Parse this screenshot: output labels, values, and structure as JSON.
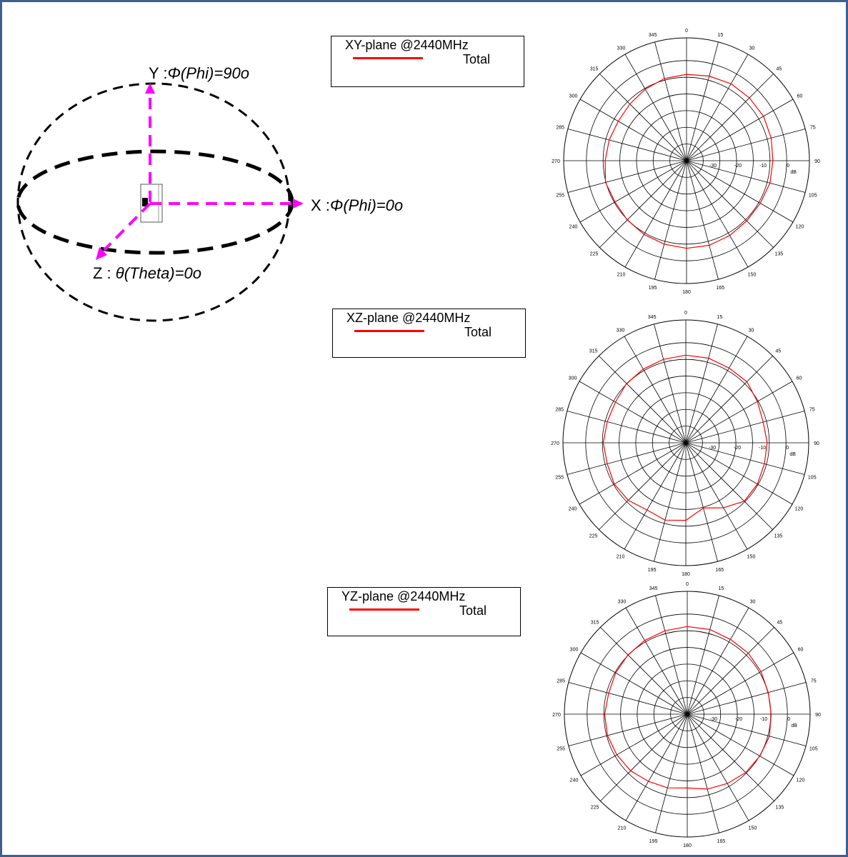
{
  "coordinate_diagram": {
    "y_axis_label": {
      "prefix": "Y :",
      "value": "Φ(Phi)=90o"
    },
    "x_axis_label": {
      "prefix": "X :",
      "value": "Φ(Phi)=0o"
    },
    "z_axis_label": {
      "prefix": "Z : ",
      "value": "θ(Theta)=0o"
    },
    "axis_color": "#ff00ff",
    "ellipse_color": "#000000"
  },
  "chart_data": [
    {
      "type": "polar_line",
      "legend_title": "XY-plane @2440MHz",
      "legend_series": "Total",
      "series": [
        {
          "name": "Total",
          "color": "#ff0000",
          "angles_deg": [
            0,
            15,
            30,
            45,
            60,
            75,
            90,
            105,
            120,
            135,
            150,
            165,
            180,
            195,
            210,
            225,
            240,
            255,
            270,
            285,
            300,
            315,
            330,
            345
          ],
          "values_db": [
            -5.5,
            -5.0,
            -4.5,
            -4.5,
            -4.5,
            -5.0,
            -5.5,
            -5.5,
            -6.0,
            -6.0,
            -5.5,
            -5.0,
            -5.0,
            -5.5,
            -6.0,
            -6.5,
            -7.0,
            -6.5,
            -7.5,
            -8.0,
            -8.5,
            -8.0,
            -7.0,
            -6.0
          ]
        }
      ],
      "angle_ticks": [
        "0",
        "15",
        "30",
        "45",
        "60",
        "75",
        "90",
        "105",
        "120",
        "135",
        "150",
        "165",
        "180",
        "195",
        "210",
        "225",
        "240",
        "255",
        "270",
        "285",
        "300",
        "315",
        "330",
        "345"
      ],
      "radial_ticks": [
        "-30",
        "-20",
        "-10",
        "0"
      ],
      "radial_unit": "dB",
      "rlim": [
        -40,
        0
      ]
    },
    {
      "type": "polar_line",
      "legend_title": "XZ-plane @2440MHz",
      "legend_series": "Total",
      "series": [
        {
          "name": "Total",
          "color": "#ff0000",
          "angles_deg": [
            0,
            15,
            30,
            45,
            60,
            75,
            90,
            105,
            120,
            135,
            150,
            165,
            180,
            195,
            210,
            225,
            240,
            255,
            270,
            285,
            300,
            315,
            330,
            345
          ],
          "values_db": [
            -5.0,
            -5.0,
            -5.5,
            -5.5,
            -7.0,
            -8.0,
            -7.5,
            -7.5,
            -7.0,
            -7.0,
            -10.0,
            -13.0,
            -9.0,
            -8.0,
            -9.0,
            -7.5,
            -7.0,
            -7.5,
            -7.0,
            -7.5,
            -7.5,
            -6.5,
            -6.0,
            -5.5
          ]
        }
      ],
      "angle_ticks": [
        "0",
        "15",
        "30",
        "45",
        "60",
        "75",
        "90",
        "105",
        "120",
        "135",
        "150",
        "165",
        "180",
        "195",
        "210",
        "225",
        "240",
        "255",
        "270",
        "285",
        "300",
        "315",
        "330",
        "345"
      ],
      "radial_ticks": [
        "-30",
        "-20",
        "-10",
        "0"
      ],
      "radial_unit": "dB",
      "rlim": [
        -40,
        0
      ]
    },
    {
      "type": "polar_line",
      "legend_title": "YZ-plane @2440MHz",
      "legend_series": "Total",
      "series": [
        {
          "name": "Total",
          "color": "#ff0000",
          "angles_deg": [
            0,
            15,
            30,
            45,
            60,
            75,
            90,
            105,
            120,
            135,
            150,
            165,
            180,
            195,
            210,
            225,
            240,
            255,
            270,
            285,
            300,
            315,
            330,
            345
          ],
          "values_db": [
            -5.0,
            -5.0,
            -5.5,
            -5.5,
            -6.0,
            -6.5,
            -6.5,
            -6.0,
            -6.5,
            -7.0,
            -8.0,
            -9.0,
            -10.5,
            -9.5,
            -9.0,
            -8.0,
            -7.5,
            -7.0,
            -7.0,
            -7.5,
            -7.0,
            -6.5,
            -6.0,
            -5.5
          ]
        }
      ],
      "angle_ticks": [
        "0",
        "15",
        "30",
        "45",
        "60",
        "75",
        "90",
        "105",
        "120",
        "135",
        "150",
        "165",
        "180",
        "195",
        "210",
        "225",
        "240",
        "255",
        "270",
        "285",
        "300",
        "315",
        "330",
        "345"
      ],
      "radial_ticks": [
        "-30",
        "-20",
        "-10",
        "0"
      ],
      "radial_unit": "dB",
      "rlim": [
        -40,
        0
      ]
    }
  ]
}
